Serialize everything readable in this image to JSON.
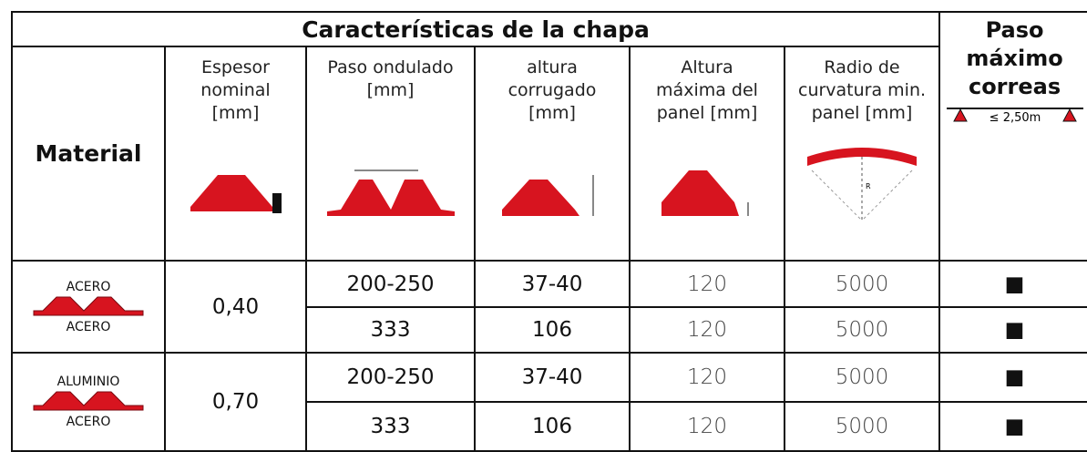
{
  "header": {
    "title": "Características de la chapa",
    "last_column": "Paso máximo correas",
    "last_column_icon_label": "≤ 2,50m",
    "radius_label": "R"
  },
  "columns": [
    "Material",
    "Espesor nominal [mm]",
    "Paso ondulado [mm]",
    "altura corrugado [mm]",
    "Altura máxima del panel [mm]",
    "Radio de curvatura min. panel [mm]"
  ],
  "rows": [
    {
      "material_top": "ACERO",
      "material_bottom": "ACERO",
      "thickness": "0,40",
      "subrows": [
        [
          "200-250",
          "37-40",
          "120",
          "5000",
          "■"
        ],
        [
          "333",
          "106",
          "120",
          "5000",
          "■"
        ]
      ]
    },
    {
      "material_top": "ALUMINIO",
      "material_bottom": "ACERO",
      "thickness": "0,70",
      "subrows": [
        [
          "200-250",
          "37-40",
          "120",
          "5000",
          "■"
        ],
        [
          "333",
          "106",
          "120",
          "5000",
          "■"
        ]
      ]
    }
  ]
}
